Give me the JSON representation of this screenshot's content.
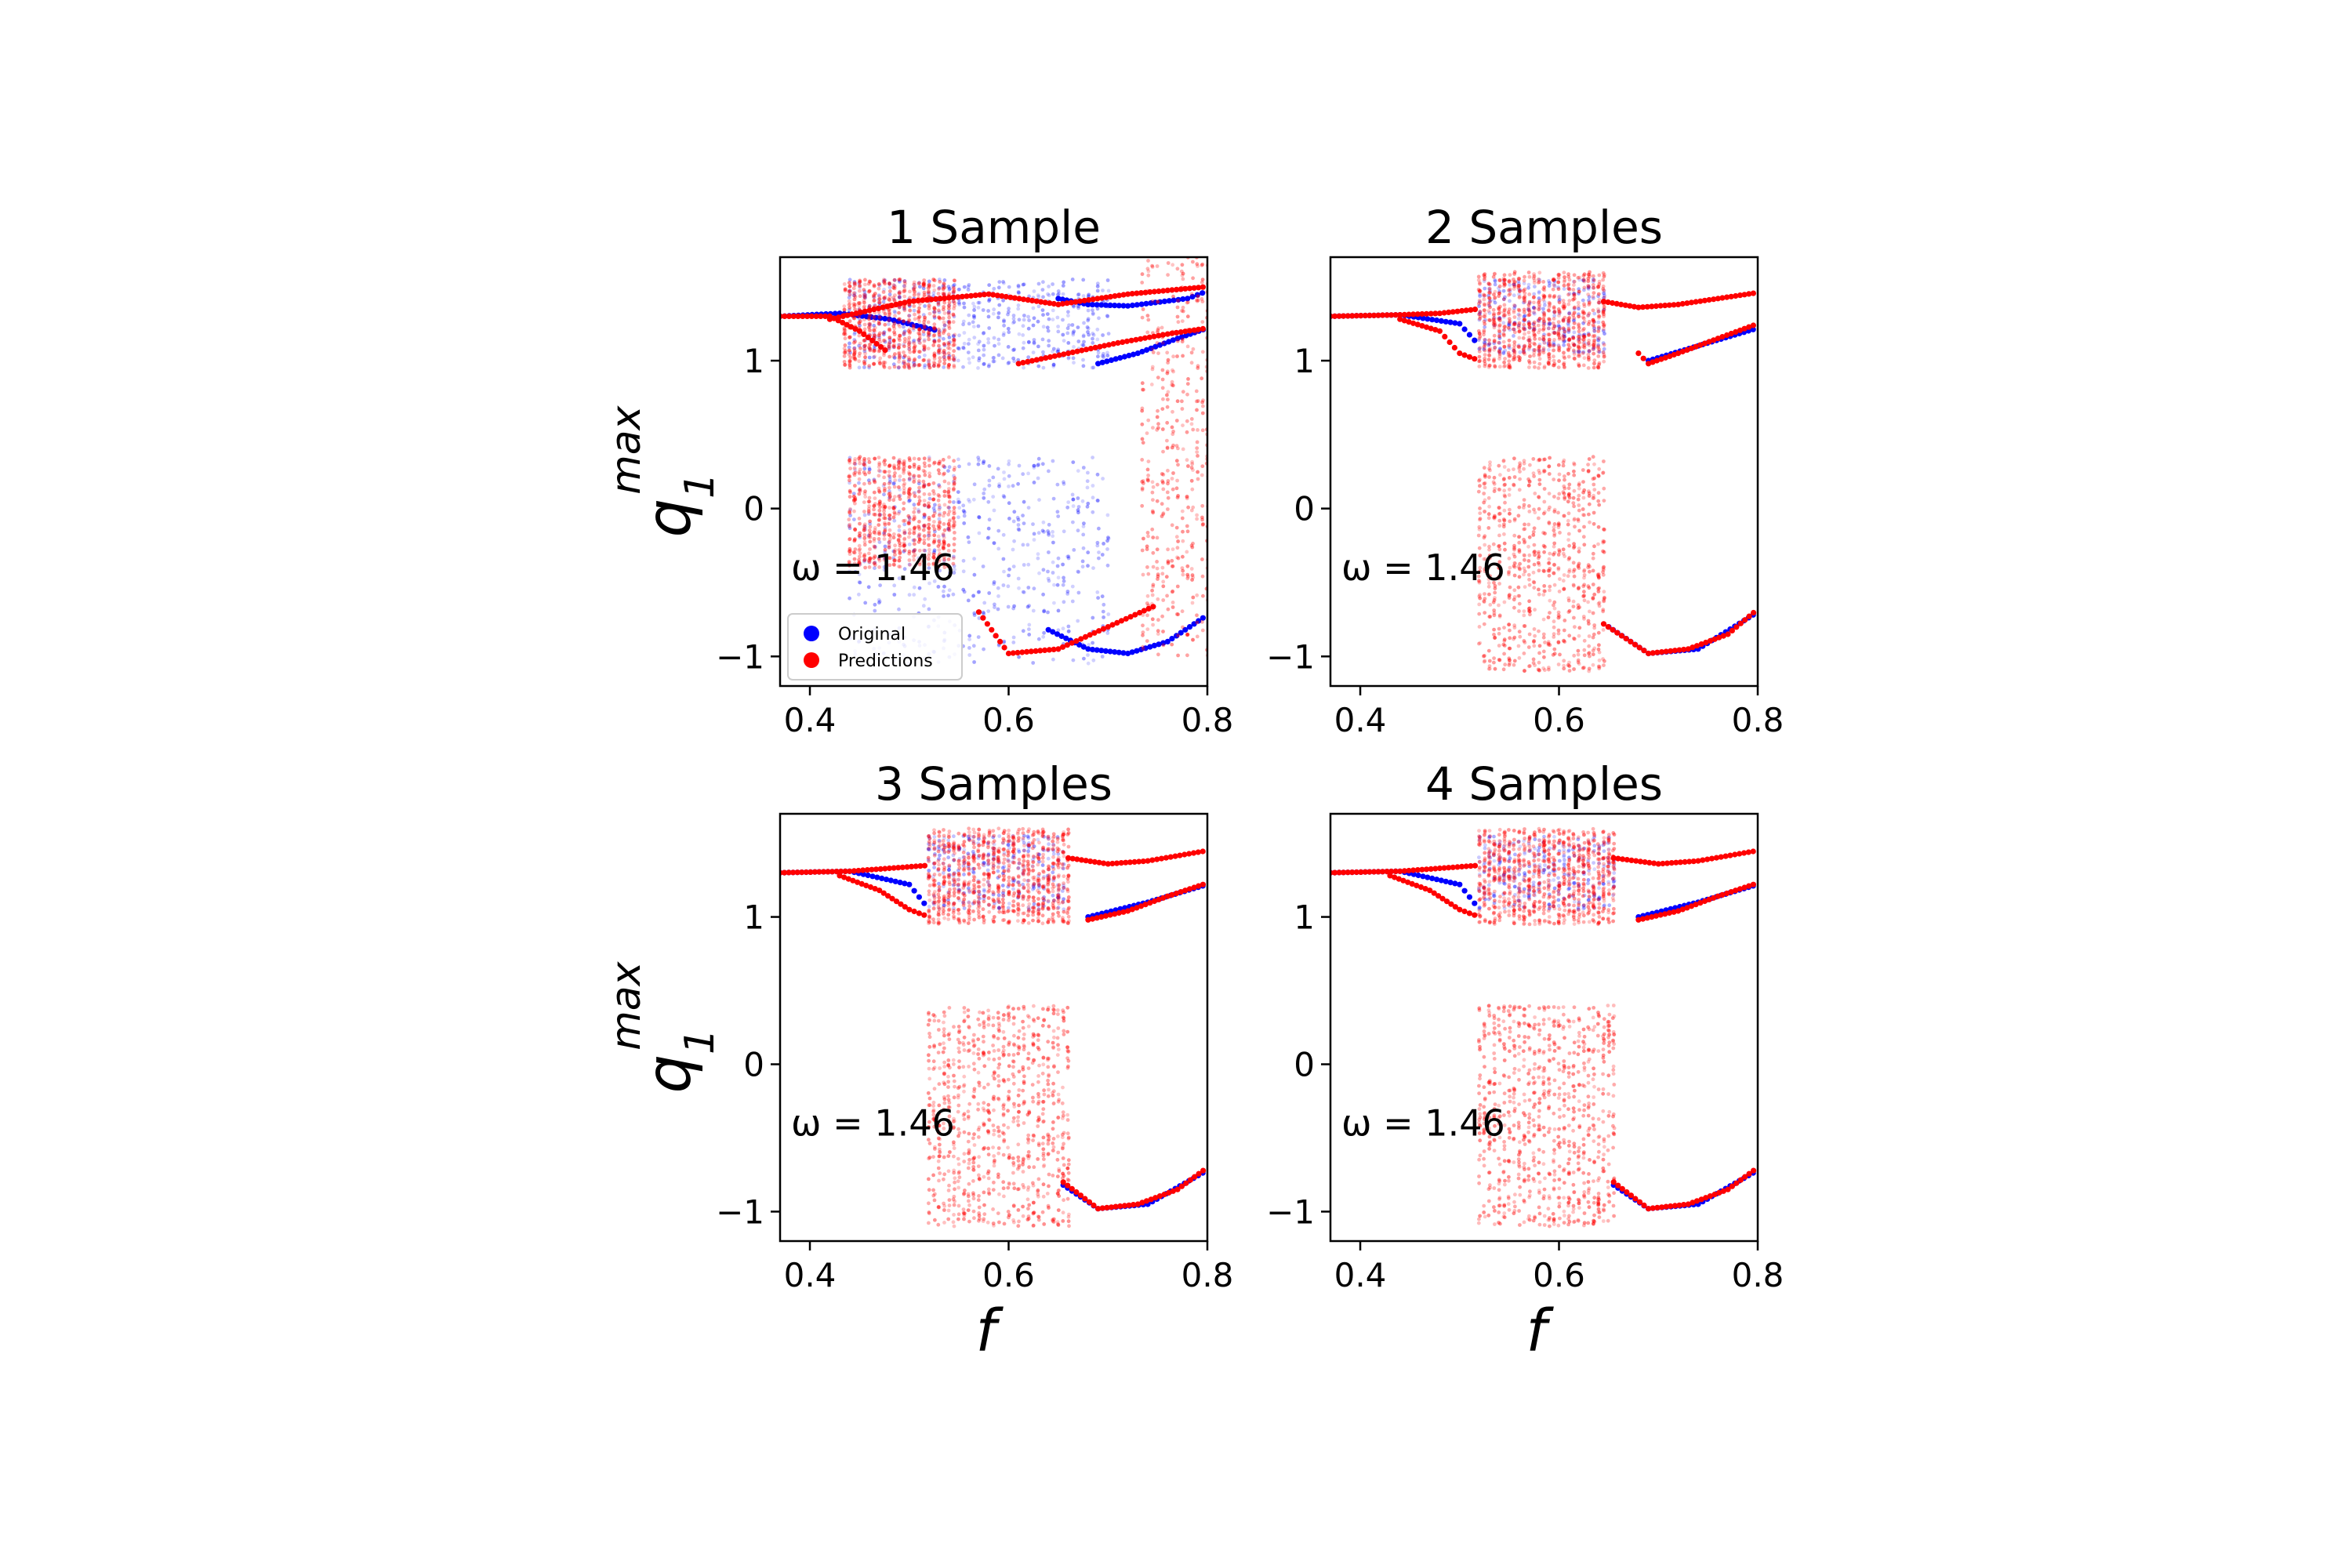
{
  "figure": {
    "xlabel": "f",
    "ylabel_main": "q",
    "ylabel_sub": "1",
    "ylabel_sup": "max"
  },
  "legend": {
    "items": [
      {
        "label": "Original",
        "color": "#0000ff"
      },
      {
        "label": "Predictions",
        "color": "#ff0000"
      }
    ]
  },
  "chart_data": [
    {
      "type": "scatter",
      "title": "1 Sample",
      "annotation": "ω = 1.46",
      "xlim": [
        0.37,
        0.8
      ],
      "ylim": [
        -1.2,
        1.7
      ],
      "xticks": [
        0.4,
        0.6,
        0.8
      ],
      "xtick_labels": [
        "0.4",
        "0.6",
        "0.8"
      ],
      "yticks": [
        -1,
        0,
        1
      ],
      "ytick_labels": [
        "−1",
        "0",
        "1"
      ],
      "series": [
        {
          "name": "Original",
          "color": "#0000ff",
          "chaotic_bands": [
            [
              0.44,
              0.7,
              0.95,
              1.55
            ],
            [
              0.44,
              0.7,
              -1.05,
              0.35
            ]
          ],
          "branches": [
            {
              "x": [
                0.37,
                0.43,
                0.48,
                0.53
              ],
              "y": [
                1.3,
                1.32,
                1.28,
                1.2
              ]
            },
            {
              "x": [
                0.65,
                0.68,
                0.72,
                0.78,
                0.8
              ],
              "y": [
                1.42,
                1.38,
                1.37,
                1.42,
                1.47
              ]
            },
            {
              "x": [
                0.69,
                0.73,
                0.77,
                0.8
              ],
              "y": [
                0.98,
                1.05,
                1.15,
                1.22
              ]
            },
            {
              "x": [
                0.64,
                0.68,
                0.72,
                0.76,
                0.8
              ],
              "y": [
                -0.82,
                -0.95,
                -0.98,
                -0.9,
                -0.72
              ]
            }
          ]
        },
        {
          "name": "Predictions",
          "color": "#ff0000",
          "chaotic_bands": [
            [
              0.435,
              0.545,
              0.95,
              1.55
            ],
            [
              0.44,
              0.545,
              -0.4,
              0.35
            ],
            [
              0.735,
              0.8,
              -1.0,
              1.7
            ]
          ],
          "branches": [
            {
              "x": [
                0.37,
                0.42,
                0.45,
                0.48
              ],
              "y": [
                1.3,
                1.3,
                1.2,
                1.05
              ]
            },
            {
              "x": [
                0.42,
                0.5,
                0.58,
                0.65,
                0.72,
                0.8
              ],
              "y": [
                1.28,
                1.4,
                1.45,
                1.38,
                1.45,
                1.5
              ]
            },
            {
              "x": [
                0.61,
                0.66,
                0.71,
                0.76,
                0.8
              ],
              "y": [
                0.98,
                1.05,
                1.12,
                1.18,
                1.22
              ]
            },
            {
              "x": [
                0.57,
                0.6,
                0.65,
                0.7,
                0.75
              ],
              "y": [
                -0.7,
                -0.98,
                -0.95,
                -0.8,
                -0.65
              ]
            }
          ]
        }
      ]
    },
    {
      "type": "scatter",
      "title": "2 Samples",
      "annotation": "ω = 1.46",
      "xlim": [
        0.37,
        0.8
      ],
      "ylim": [
        -1.2,
        1.7
      ],
      "xticks": [
        0.4,
        0.6,
        0.8
      ],
      "xtick_labels": [
        "0.4",
        "0.6",
        "0.8"
      ],
      "yticks": [
        -1,
        0,
        1
      ],
      "ytick_labels": [
        "−1",
        "0",
        "1"
      ],
      "series": [
        {
          "name": "Original",
          "color": "#0000ff",
          "chaotic_bands": [
            [
              0.52,
              0.645,
              1.05,
              1.55
            ]
          ],
          "branches": [
            {
              "x": [
                0.37,
                0.44,
                0.5,
                0.52
              ],
              "y": [
                1.3,
                1.31,
                1.25,
                1.1
              ]
            },
            {
              "x": [
                0.65,
                0.69,
                0.74,
                0.8
              ],
              "y": [
                -0.8,
                -0.98,
                -0.95,
                -0.7
              ]
            },
            {
              "x": [
                0.69,
                0.74,
                0.8
              ],
              "y": [
                1.0,
                1.1,
                1.22
              ]
            }
          ]
        },
        {
          "name": "Predictions",
          "color": "#ff0000",
          "chaotic_bands": [
            [
              0.52,
              0.645,
              0.95,
              1.6
            ],
            [
              0.52,
              0.645,
              -1.1,
              0.35
            ]
          ],
          "branches": [
            {
              "x": [
                0.37,
                0.44,
                0.48,
                0.52
              ],
              "y": [
                1.3,
                1.31,
                1.32,
                1.35
              ]
            },
            {
              "x": [
                0.44,
                0.48,
                0.5,
                0.52
              ],
              "y": [
                1.28,
                1.2,
                1.05,
                1.0
              ]
            },
            {
              "x": [
                0.645,
                0.68,
                0.72,
                0.76,
                0.8
              ],
              "y": [
                1.4,
                1.36,
                1.38,
                1.42,
                1.46
              ]
            },
            {
              "x": [
                0.68,
                0.69,
                0.72,
                0.76,
                0.8
              ],
              "y": [
                1.05,
                0.98,
                1.05,
                1.15,
                1.25
              ]
            },
            {
              "x": [
                0.645,
                0.69,
                0.73,
                0.77,
                0.8
              ],
              "y": [
                -0.78,
                -0.98,
                -0.95,
                -0.85,
                -0.68
              ]
            }
          ]
        }
      ]
    },
    {
      "type": "scatter",
      "title": "3 Samples",
      "annotation": "ω = 1.46",
      "xlim": [
        0.37,
        0.8
      ],
      "ylim": [
        -1.2,
        1.7
      ],
      "xticks": [
        0.4,
        0.6,
        0.8
      ],
      "xtick_labels": [
        "0.4",
        "0.6",
        "0.8"
      ],
      "yticks": [
        -1,
        0,
        1
      ],
      "ytick_labels": [
        "−1",
        "0",
        "1"
      ],
      "series": [
        {
          "name": "Original",
          "color": "#0000ff",
          "chaotic_bands": [
            [
              0.52,
              0.655,
              1.05,
              1.55
            ]
          ],
          "branches": [
            {
              "x": [
                0.37,
                0.44,
                0.5,
                0.52
              ],
              "y": [
                1.3,
                1.31,
                1.22,
                1.05
              ]
            },
            {
              "x": [
                0.655,
                0.69,
                0.74,
                0.8
              ],
              "y": [
                -0.82,
                -0.98,
                -0.95,
                -0.72
              ]
            },
            {
              "x": [
                0.68,
                0.74,
                0.8
              ],
              "y": [
                1.0,
                1.1,
                1.22
              ]
            }
          ]
        },
        {
          "name": "Predictions",
          "color": "#ff0000",
          "chaotic_bands": [
            [
              0.52,
              0.66,
              0.95,
              1.6
            ],
            [
              0.52,
              0.66,
              -1.1,
              0.4
            ]
          ],
          "branches": [
            {
              "x": [
                0.37,
                0.44,
                0.48,
                0.52
              ],
              "y": [
                1.3,
                1.31,
                1.33,
                1.35
              ]
            },
            {
              "x": [
                0.43,
                0.47,
                0.5,
                0.52
              ],
              "y": [
                1.28,
                1.18,
                1.05,
                1.0
              ]
            },
            {
              "x": [
                0.66,
                0.7,
                0.74,
                0.8
              ],
              "y": [
                1.4,
                1.36,
                1.38,
                1.45
              ]
            },
            {
              "x": [
                0.68,
                0.72,
                0.76,
                0.8
              ],
              "y": [
                0.98,
                1.04,
                1.14,
                1.23
              ]
            },
            {
              "x": [
                0.655,
                0.69,
                0.73,
                0.77,
                0.8
              ],
              "y": [
                -0.8,
                -0.98,
                -0.95,
                -0.85,
                -0.7
              ]
            }
          ]
        }
      ]
    },
    {
      "type": "scatter",
      "title": "4 Samples",
      "annotation": "ω = 1.46",
      "xlim": [
        0.37,
        0.8
      ],
      "ylim": [
        -1.2,
        1.7
      ],
      "xticks": [
        0.4,
        0.6,
        0.8
      ],
      "xtick_labels": [
        "0.4",
        "0.6",
        "0.8"
      ],
      "yticks": [
        -1,
        0,
        1
      ],
      "ytick_labels": [
        "−1",
        "0",
        "1"
      ],
      "series": [
        {
          "name": "Original",
          "color": "#0000ff",
          "chaotic_bands": [
            [
              0.52,
              0.655,
              1.05,
              1.55
            ]
          ],
          "branches": [
            {
              "x": [
                0.37,
                0.44,
                0.5,
                0.52
              ],
              "y": [
                1.3,
                1.31,
                1.22,
                1.05
              ]
            },
            {
              "x": [
                0.655,
                0.69,
                0.74,
                0.8
              ],
              "y": [
                -0.82,
                -0.98,
                -0.95,
                -0.72
              ]
            },
            {
              "x": [
                0.68,
                0.74,
                0.8
              ],
              "y": [
                1.0,
                1.1,
                1.22
              ]
            }
          ]
        },
        {
          "name": "Predictions",
          "color": "#ff0000",
          "chaotic_bands": [
            [
              0.52,
              0.655,
              0.95,
              1.6
            ],
            [
              0.52,
              0.655,
              -1.1,
              0.4
            ]
          ],
          "branches": [
            {
              "x": [
                0.37,
                0.44,
                0.48,
                0.52
              ],
              "y": [
                1.3,
                1.31,
                1.33,
                1.35
              ]
            },
            {
              "x": [
                0.43,
                0.47,
                0.5,
                0.52
              ],
              "y": [
                1.28,
                1.18,
                1.05,
                1.0
              ]
            },
            {
              "x": [
                0.655,
                0.7,
                0.74,
                0.8
              ],
              "y": [
                1.4,
                1.36,
                1.38,
                1.45
              ]
            },
            {
              "x": [
                0.68,
                0.72,
                0.76,
                0.8
              ],
              "y": [
                0.98,
                1.04,
                1.14,
                1.23
              ]
            },
            {
              "x": [
                0.655,
                0.69,
                0.73,
                0.77,
                0.8
              ],
              "y": [
                -0.8,
                -0.98,
                -0.95,
                -0.85,
                -0.7
              ]
            }
          ]
        }
      ]
    }
  ]
}
